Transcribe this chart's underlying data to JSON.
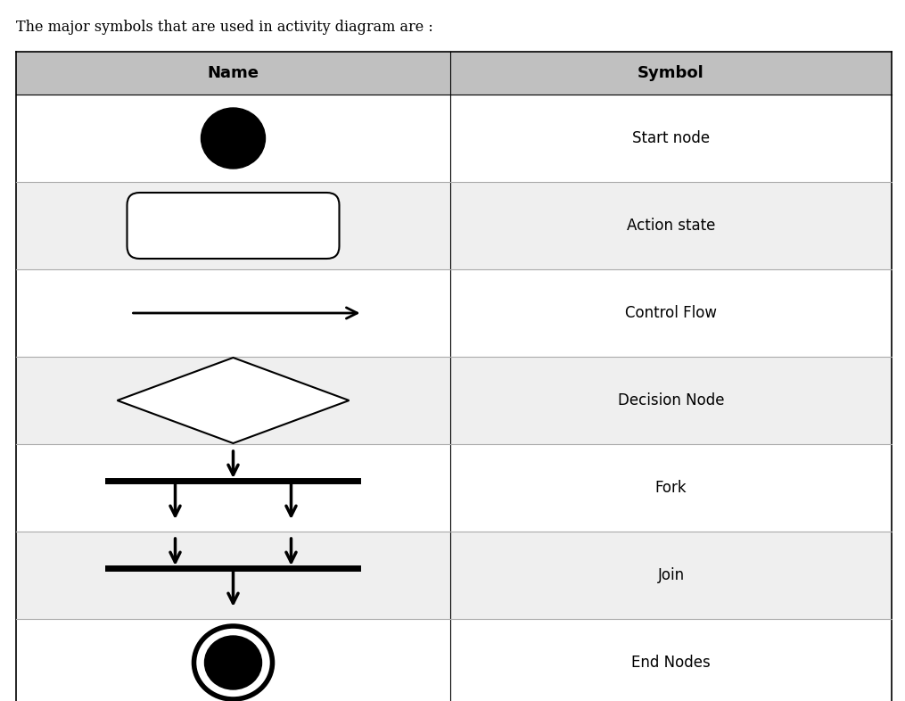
{
  "title": "The major symbols that are used in activity diagram are :",
  "title_fontsize": 11.5,
  "col1_label": "Name",
  "col2_label": "Symbol",
  "header_bg": "#c0c0c0",
  "text_color": "#000000",
  "rows": [
    {
      "name": "Start node",
      "bg": "#ffffff"
    },
    {
      "name": "Action state",
      "bg": "#efefef"
    },
    {
      "name": "Control Flow",
      "bg": "#ffffff"
    },
    {
      "name": "Decision Node",
      "bg": "#efefef"
    },
    {
      "name": "Fork",
      "bg": "#ffffff"
    },
    {
      "name": "Join",
      "bg": "#efefef"
    },
    {
      "name": "End Nodes",
      "bg": "#ffffff"
    }
  ],
  "figsize": [
    10.15,
    7.86
  ],
  "dpi": 100
}
